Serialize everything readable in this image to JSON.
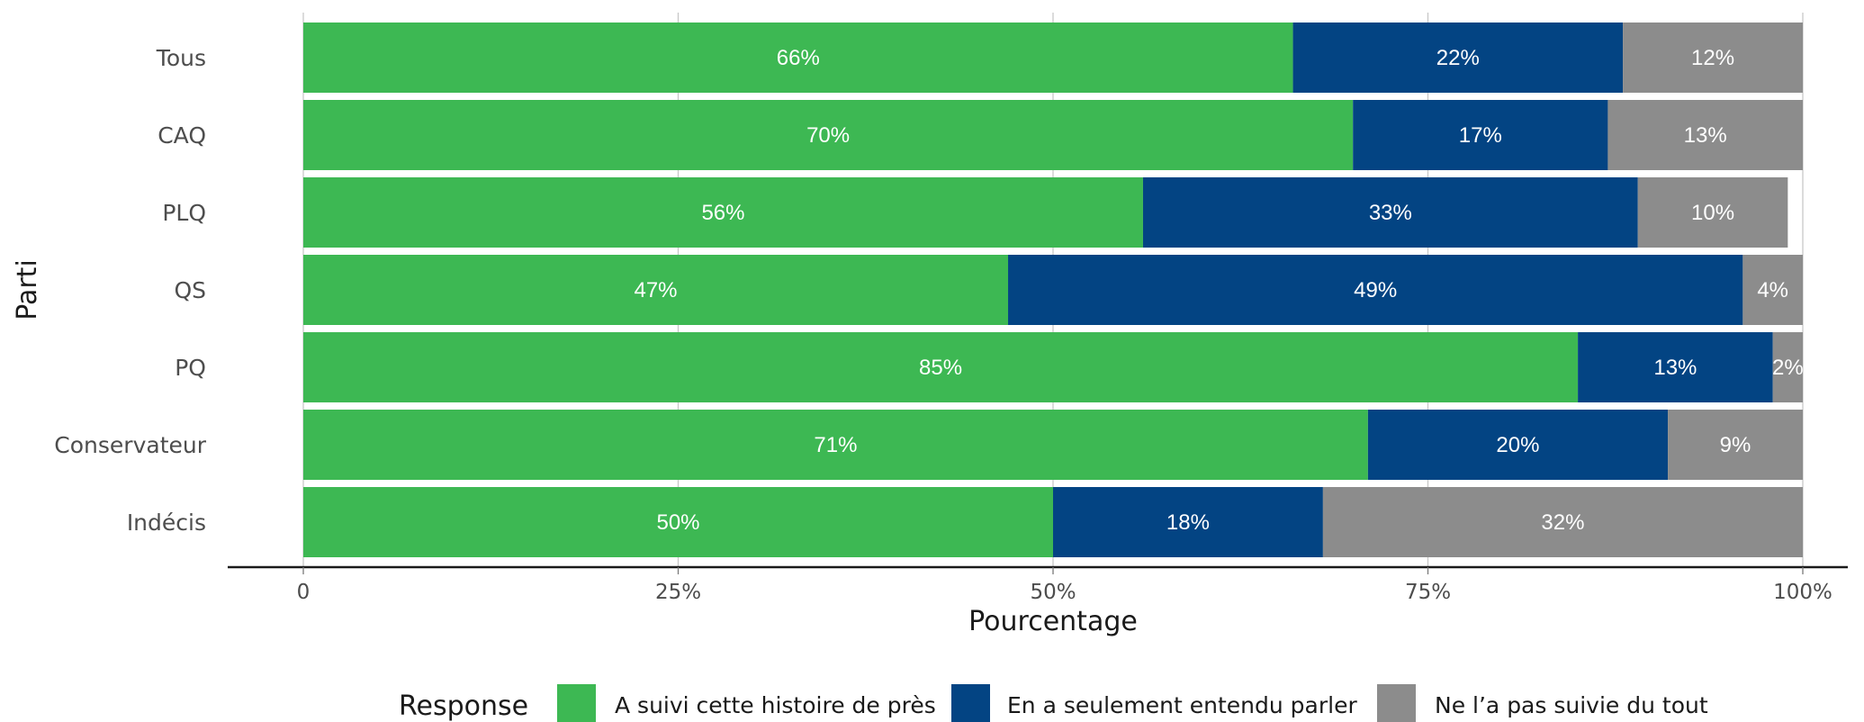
{
  "chart_data": {
    "type": "bar",
    "orientation": "horizontal",
    "stacked": true,
    "normalized": true,
    "title": "",
    "xlabel": "Pourcentage",
    "ylabel": "Parti",
    "xlim": [
      0,
      100
    ],
    "x_ticks": [
      "0",
      "25%",
      "50%",
      "75%",
      "100%"
    ],
    "x_tick_values": [
      0,
      25,
      50,
      75,
      100
    ],
    "categories": [
      "Tous",
      "CAQ",
      "PLQ",
      "QS",
      "PQ",
      "Conservateur",
      "Indécis"
    ],
    "series": [
      {
        "name": "A suivi cette histoire de près",
        "color": "#3db853",
        "values": [
          66,
          70,
          56,
          47,
          85,
          71,
          50
        ],
        "labels": [
          "66%",
          "70%",
          "56%",
          "47%",
          "85%",
          "71%",
          "50%"
        ]
      },
      {
        "name": "En a seulement entendu parler",
        "color": "#034483",
        "values": [
          22,
          17,
          33,
          49,
          13,
          20,
          18
        ],
        "labels": [
          "22%",
          "17%",
          "33%",
          "49%",
          "13%",
          "20%",
          "18%"
        ]
      },
      {
        "name": "Ne l’a pas suivie du tout",
        "color": "#8c8c8c",
        "values": [
          12,
          13,
          10,
          4,
          2,
          9,
          32
        ],
        "labels": [
          "12%",
          "13%",
          "10%",
          "4%",
          "2%",
          "9%",
          "32%"
        ]
      }
    ],
    "legend": {
      "title": "Response",
      "position": "bottom"
    },
    "grid": true
  }
}
